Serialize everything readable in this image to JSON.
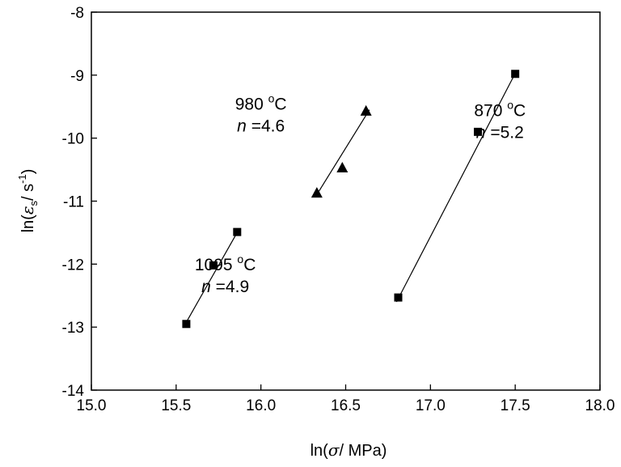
{
  "chart_data": {
    "type": "scatter",
    "xlabel_prefix": "ln(",
    "xlabel_symbol": "σ",
    "xlabel_suffix": "/ MPa)",
    "ylabel_prefix": "ln(",
    "ylabel_symbol": "ε",
    "ylabel_subscript": "s",
    "ylabel_unit": "/ s",
    "ylabel_exponent": "-1",
    "ylabel_close": ")",
    "xlim": [
      15.0,
      18.0
    ],
    "ylim": [
      -14,
      -8
    ],
    "x_ticks": [
      15.0,
      15.5,
      16.0,
      16.5,
      17.0,
      17.5,
      18.0
    ],
    "x_tick_labels": [
      "15.0",
      "15.5",
      "16.0",
      "16.5",
      "17.0",
      "17.5",
      "18.0"
    ],
    "y_ticks": [
      -14,
      -13,
      -12,
      -11,
      -10,
      -9,
      -8
    ],
    "y_tick_labels": [
      "-14",
      "-13",
      "-12",
      "-11",
      "-10",
      "-9",
      "-8"
    ],
    "grid": false,
    "series": [
      {
        "marker": "square",
        "x": [
          15.56,
          15.72,
          15.86
        ],
        "y": [
          -12.95,
          -12.02,
          -11.49
        ],
        "fit": {
          "x": [
            15.55,
            15.87
          ],
          "y": [
            -12.97,
            -11.45
          ]
        },
        "annotation": {
          "temp": "1095 ",
          "deg": "o",
          "unit": "C",
          "n_sym": "n",
          "n_val": " =4.9",
          "anchor": [
            15.79,
            -12.1
          ]
        }
      },
      {
        "marker": "triangle",
        "x": [
          16.33,
          16.48,
          16.62
        ],
        "y": [
          -10.88,
          -10.48,
          -9.58
        ],
        "fit": {
          "x": [
            16.32,
            16.64
          ],
          "y": [
            -10.94,
            -9.55
          ]
        },
        "annotation": {
          "temp": "980 ",
          "deg": "o",
          "unit": "C",
          "n_sym": "n",
          "n_val": " =4.6",
          "anchor": [
            16.0,
            -9.55
          ]
        }
      },
      {
        "marker": "square",
        "x": [
          16.81,
          17.28,
          17.5
        ],
        "y": [
          -12.53,
          -9.9,
          -8.98
        ],
        "fit": {
          "x": [
            16.8,
            17.51
          ],
          "y": [
            -12.6,
            -8.92
          ]
        },
        "annotation": {
          "temp": "870 ",
          "deg": "o",
          "unit": "C",
          "n_sym": "n",
          "n_val": " =5.2",
          "anchor": [
            17.41,
            -9.65
          ]
        }
      }
    ]
  }
}
